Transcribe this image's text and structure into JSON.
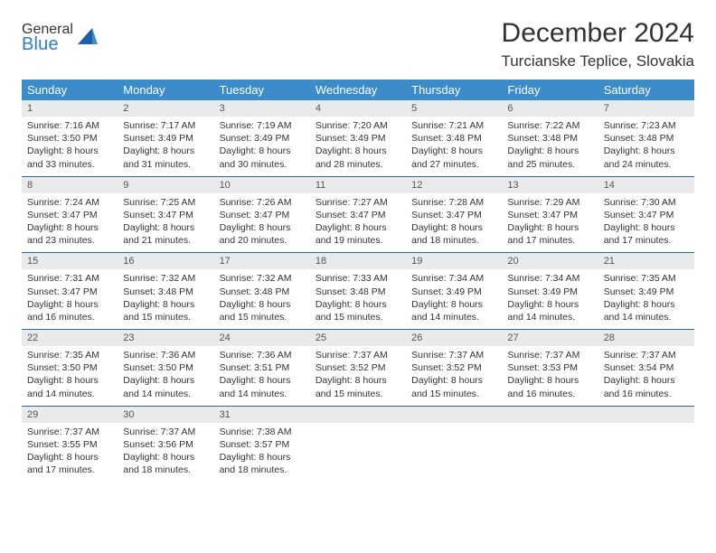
{
  "logo": {
    "line1": "General",
    "line2": "Blue"
  },
  "title": "December 2024",
  "location": "Turcianske Teplice, Slovakia",
  "header_bg": "#3b8cc9",
  "header_text_color": "#ffffff",
  "daynum_bg": "#e9eaec",
  "row_border_color": "#2b6aa3",
  "body_bg": "#ffffff",
  "font_color": "#333333",
  "weekdays": [
    "Sunday",
    "Monday",
    "Tuesday",
    "Wednesday",
    "Thursday",
    "Friday",
    "Saturday"
  ],
  "weeks": [
    [
      {
        "n": "1",
        "sr": "Sunrise: 7:16 AM",
        "ss": "Sunset: 3:50 PM",
        "d1": "Daylight: 8 hours",
        "d2": "and 33 minutes."
      },
      {
        "n": "2",
        "sr": "Sunrise: 7:17 AM",
        "ss": "Sunset: 3:49 PM",
        "d1": "Daylight: 8 hours",
        "d2": "and 31 minutes."
      },
      {
        "n": "3",
        "sr": "Sunrise: 7:19 AM",
        "ss": "Sunset: 3:49 PM",
        "d1": "Daylight: 8 hours",
        "d2": "and 30 minutes."
      },
      {
        "n": "4",
        "sr": "Sunrise: 7:20 AM",
        "ss": "Sunset: 3:49 PM",
        "d1": "Daylight: 8 hours",
        "d2": "and 28 minutes."
      },
      {
        "n": "5",
        "sr": "Sunrise: 7:21 AM",
        "ss": "Sunset: 3:48 PM",
        "d1": "Daylight: 8 hours",
        "d2": "and 27 minutes."
      },
      {
        "n": "6",
        "sr": "Sunrise: 7:22 AM",
        "ss": "Sunset: 3:48 PM",
        "d1": "Daylight: 8 hours",
        "d2": "and 25 minutes."
      },
      {
        "n": "7",
        "sr": "Sunrise: 7:23 AM",
        "ss": "Sunset: 3:48 PM",
        "d1": "Daylight: 8 hours",
        "d2": "and 24 minutes."
      }
    ],
    [
      {
        "n": "8",
        "sr": "Sunrise: 7:24 AM",
        "ss": "Sunset: 3:47 PM",
        "d1": "Daylight: 8 hours",
        "d2": "and 23 minutes."
      },
      {
        "n": "9",
        "sr": "Sunrise: 7:25 AM",
        "ss": "Sunset: 3:47 PM",
        "d1": "Daylight: 8 hours",
        "d2": "and 21 minutes."
      },
      {
        "n": "10",
        "sr": "Sunrise: 7:26 AM",
        "ss": "Sunset: 3:47 PM",
        "d1": "Daylight: 8 hours",
        "d2": "and 20 minutes."
      },
      {
        "n": "11",
        "sr": "Sunrise: 7:27 AM",
        "ss": "Sunset: 3:47 PM",
        "d1": "Daylight: 8 hours",
        "d2": "and 19 minutes."
      },
      {
        "n": "12",
        "sr": "Sunrise: 7:28 AM",
        "ss": "Sunset: 3:47 PM",
        "d1": "Daylight: 8 hours",
        "d2": "and 18 minutes."
      },
      {
        "n": "13",
        "sr": "Sunrise: 7:29 AM",
        "ss": "Sunset: 3:47 PM",
        "d1": "Daylight: 8 hours",
        "d2": "and 17 minutes."
      },
      {
        "n": "14",
        "sr": "Sunrise: 7:30 AM",
        "ss": "Sunset: 3:47 PM",
        "d1": "Daylight: 8 hours",
        "d2": "and 17 minutes."
      }
    ],
    [
      {
        "n": "15",
        "sr": "Sunrise: 7:31 AM",
        "ss": "Sunset: 3:47 PM",
        "d1": "Daylight: 8 hours",
        "d2": "and 16 minutes."
      },
      {
        "n": "16",
        "sr": "Sunrise: 7:32 AM",
        "ss": "Sunset: 3:48 PM",
        "d1": "Daylight: 8 hours",
        "d2": "and 15 minutes."
      },
      {
        "n": "17",
        "sr": "Sunrise: 7:32 AM",
        "ss": "Sunset: 3:48 PM",
        "d1": "Daylight: 8 hours",
        "d2": "and 15 minutes."
      },
      {
        "n": "18",
        "sr": "Sunrise: 7:33 AM",
        "ss": "Sunset: 3:48 PM",
        "d1": "Daylight: 8 hours",
        "d2": "and 15 minutes."
      },
      {
        "n": "19",
        "sr": "Sunrise: 7:34 AM",
        "ss": "Sunset: 3:49 PM",
        "d1": "Daylight: 8 hours",
        "d2": "and 14 minutes."
      },
      {
        "n": "20",
        "sr": "Sunrise: 7:34 AM",
        "ss": "Sunset: 3:49 PM",
        "d1": "Daylight: 8 hours",
        "d2": "and 14 minutes."
      },
      {
        "n": "21",
        "sr": "Sunrise: 7:35 AM",
        "ss": "Sunset: 3:49 PM",
        "d1": "Daylight: 8 hours",
        "d2": "and 14 minutes."
      }
    ],
    [
      {
        "n": "22",
        "sr": "Sunrise: 7:35 AM",
        "ss": "Sunset: 3:50 PM",
        "d1": "Daylight: 8 hours",
        "d2": "and 14 minutes."
      },
      {
        "n": "23",
        "sr": "Sunrise: 7:36 AM",
        "ss": "Sunset: 3:50 PM",
        "d1": "Daylight: 8 hours",
        "d2": "and 14 minutes."
      },
      {
        "n": "24",
        "sr": "Sunrise: 7:36 AM",
        "ss": "Sunset: 3:51 PM",
        "d1": "Daylight: 8 hours",
        "d2": "and 14 minutes."
      },
      {
        "n": "25",
        "sr": "Sunrise: 7:37 AM",
        "ss": "Sunset: 3:52 PM",
        "d1": "Daylight: 8 hours",
        "d2": "and 15 minutes."
      },
      {
        "n": "26",
        "sr": "Sunrise: 7:37 AM",
        "ss": "Sunset: 3:52 PM",
        "d1": "Daylight: 8 hours",
        "d2": "and 15 minutes."
      },
      {
        "n": "27",
        "sr": "Sunrise: 7:37 AM",
        "ss": "Sunset: 3:53 PM",
        "d1": "Daylight: 8 hours",
        "d2": "and 16 minutes."
      },
      {
        "n": "28",
        "sr": "Sunrise: 7:37 AM",
        "ss": "Sunset: 3:54 PM",
        "d1": "Daylight: 8 hours",
        "d2": "and 16 minutes."
      }
    ],
    [
      {
        "n": "29",
        "sr": "Sunrise: 7:37 AM",
        "ss": "Sunset: 3:55 PM",
        "d1": "Daylight: 8 hours",
        "d2": "and 17 minutes."
      },
      {
        "n": "30",
        "sr": "Sunrise: 7:37 AM",
        "ss": "Sunset: 3:56 PM",
        "d1": "Daylight: 8 hours",
        "d2": "and 18 minutes."
      },
      {
        "n": "31",
        "sr": "Sunrise: 7:38 AM",
        "ss": "Sunset: 3:57 PM",
        "d1": "Daylight: 8 hours",
        "d2": "and 18 minutes."
      },
      {
        "empty": true
      },
      {
        "empty": true
      },
      {
        "empty": true
      },
      {
        "empty": true
      }
    ]
  ]
}
